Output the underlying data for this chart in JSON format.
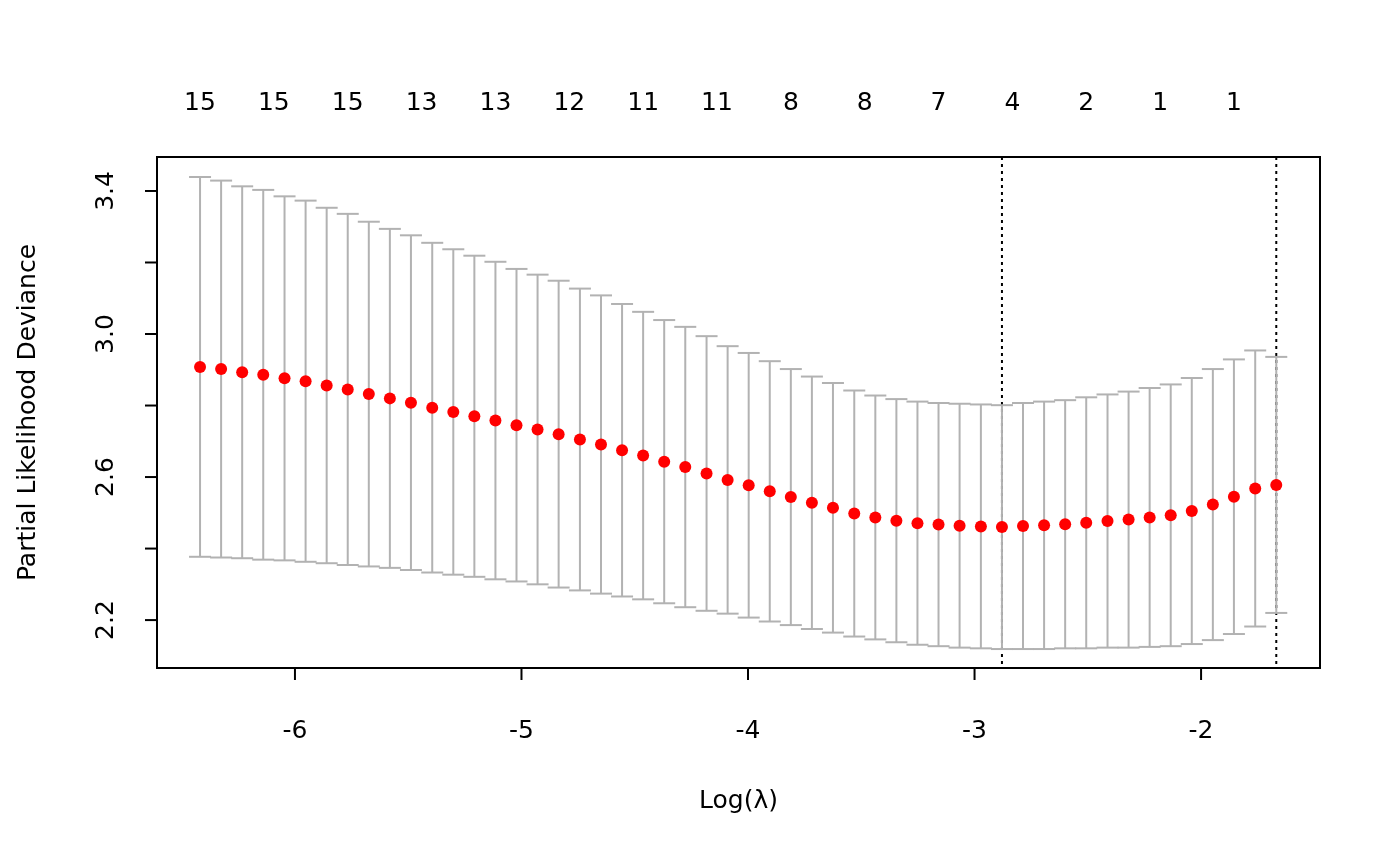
{
  "chart_data": {
    "type": "scatter",
    "xlabel": "Log(λ)",
    "ylabel": "Partial Likelihood Deviance",
    "x": [
      -6.419,
      -6.326,
      -6.233,
      -6.14,
      -6.046,
      -5.953,
      -5.86,
      -5.767,
      -5.674,
      -5.581,
      -5.488,
      -5.394,
      -5.301,
      -5.208,
      -5.115,
      -5.022,
      -4.929,
      -4.836,
      -4.742,
      -4.649,
      -4.556,
      -4.463,
      -4.37,
      -4.277,
      -4.183,
      -4.09,
      -3.997,
      -3.904,
      -3.811,
      -3.718,
      -3.625,
      -3.531,
      -3.438,
      -3.345,
      -3.252,
      -3.159,
      -3.066,
      -2.972,
      -2.879,
      -2.786,
      -2.693,
      -2.6,
      -2.507,
      -2.413,
      -2.32,
      -2.227,
      -2.134,
      -2.041,
      -1.948,
      -1.855,
      -1.761,
      -1.668
    ],
    "series": [
      {
        "color": "#ff0000",
        "values": [
          2.908,
          2.902,
          2.893,
          2.886,
          2.876,
          2.868,
          2.856,
          2.845,
          2.832,
          2.82,
          2.808,
          2.794,
          2.782,
          2.77,
          2.758,
          2.745,
          2.733,
          2.72,
          2.705,
          2.691,
          2.675,
          2.66,
          2.643,
          2.628,
          2.61,
          2.592,
          2.577,
          2.56,
          2.544,
          2.528,
          2.514,
          2.498,
          2.487,
          2.478,
          2.471,
          2.467,
          2.464,
          2.462,
          2.46,
          2.463,
          2.465,
          2.468,
          2.472,
          2.477,
          2.481,
          2.487,
          2.493,
          2.505,
          2.523,
          2.545,
          2.568,
          2.578
        ],
        "errors": [
          0.531,
          0.527,
          0.52,
          0.517,
          0.509,
          0.505,
          0.497,
          0.491,
          0.482,
          0.474,
          0.468,
          0.461,
          0.455,
          0.449,
          0.444,
          0.437,
          0.433,
          0.429,
          0.422,
          0.417,
          0.409,
          0.402,
          0.396,
          0.392,
          0.384,
          0.374,
          0.37,
          0.364,
          0.358,
          0.353,
          0.349,
          0.344,
          0.341,
          0.34,
          0.34,
          0.34,
          0.341,
          0.341,
          0.341,
          0.344,
          0.346,
          0.347,
          0.351,
          0.354,
          0.358,
          0.362,
          0.366,
          0.372,
          0.379,
          0.384,
          0.386,
          0.358
        ]
      }
    ],
    "xlim": [
      -6.609,
      -1.475
    ],
    "ylim": [
      2.066,
      3.495
    ],
    "xticks": [
      -6,
      -5,
      -4,
      -3,
      -2
    ],
    "yticks": [
      {
        "value": 2.2,
        "label": "2.2"
      },
      {
        "value": 2.4,
        "label": null
      },
      {
        "value": 2.6,
        "label": "2.6"
      },
      {
        "value": 2.8,
        "label": null
      },
      {
        "value": 3.0,
        "label": "3.0"
      },
      {
        "value": 3.2,
        "label": null
      },
      {
        "value": 3.4,
        "label": "3.4"
      }
    ],
    "annotations": [
      "15",
      "15",
      "15",
      "13",
      "13",
      "12",
      "11",
      "11",
      "8",
      "8",
      "7",
      "4",
      "2",
      "1",
      "1"
    ],
    "ref_lines": [
      {
        "axis": "x",
        "value": -2.879,
        "color": "#000000",
        "line_style": "dotted"
      },
      {
        "axis": "x",
        "value": -1.668,
        "color": "#000000",
        "line_style": "dotted"
      }
    ],
    "marker": "circle",
    "grid": false
  }
}
